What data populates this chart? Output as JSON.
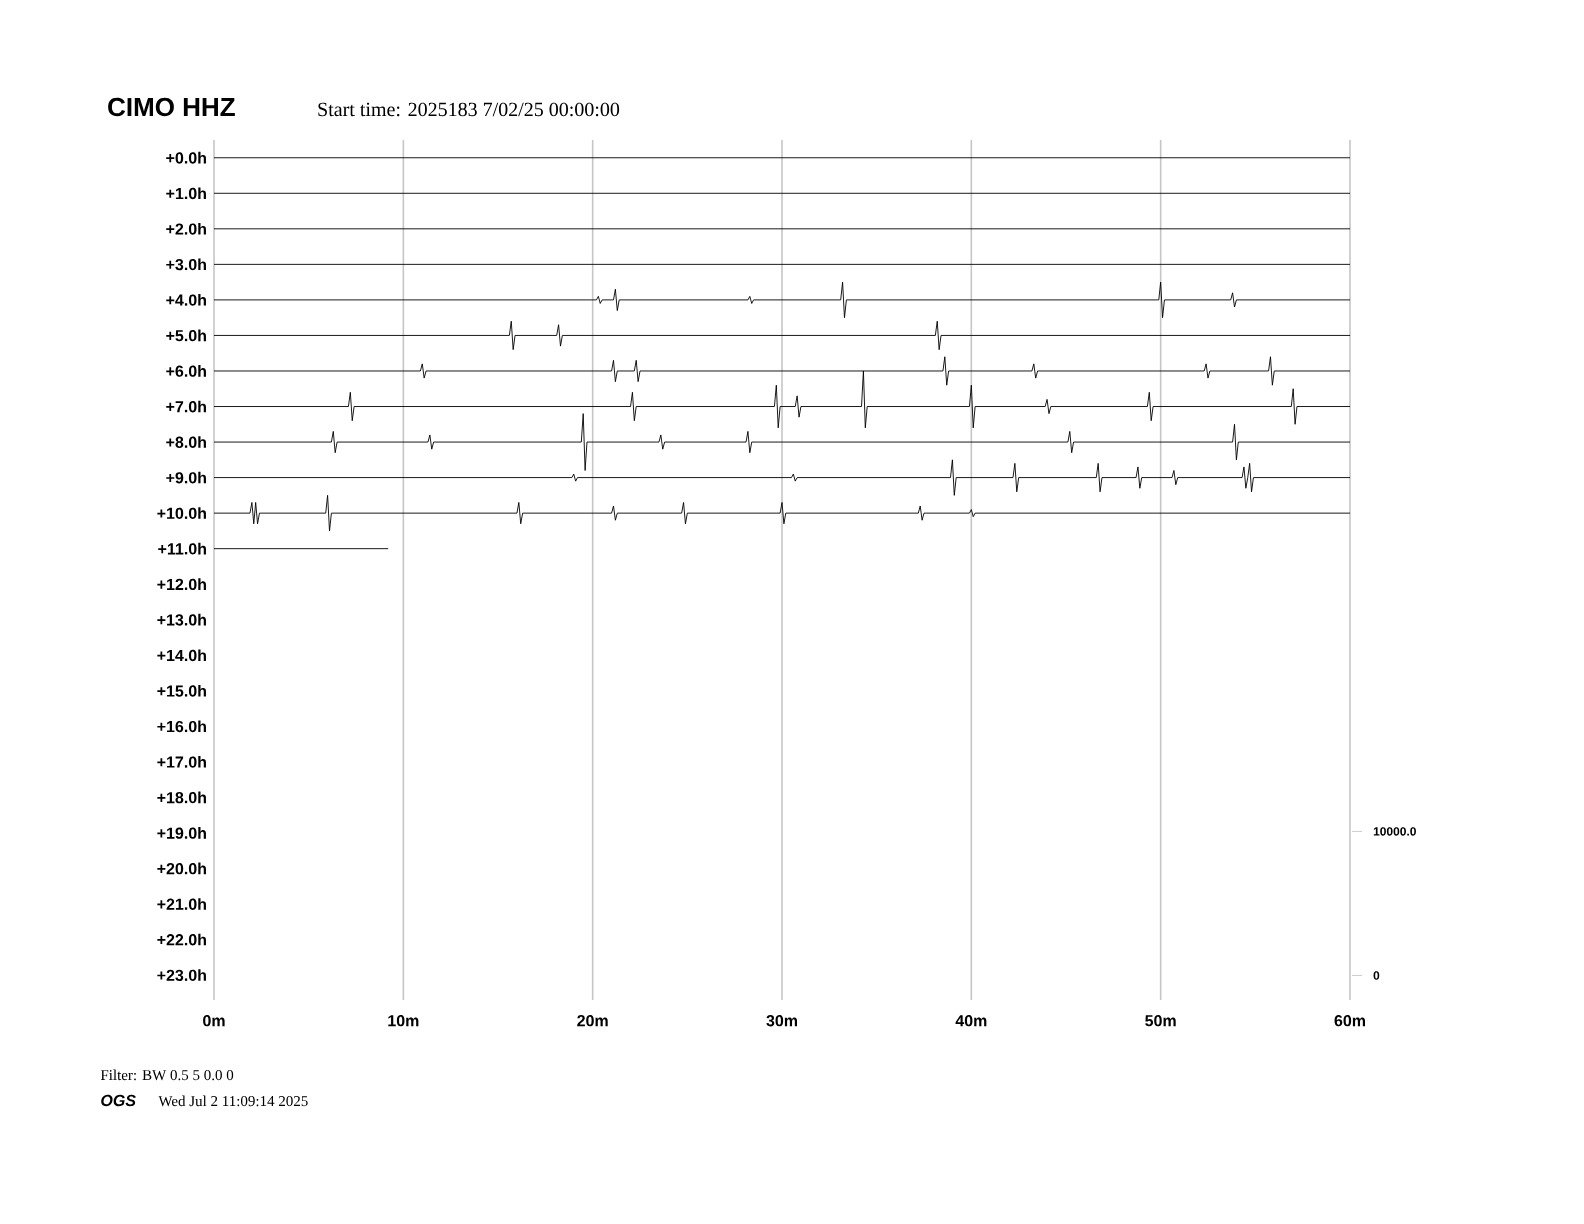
{
  "chart_data": {
    "type": "line",
    "title": "CIMO HHZ",
    "subtitle": "Start time: 2025183  7/02/25 00:00:00",
    "annotations": [
      "Filter: BW 0.5 5 0.0 0",
      "OGS",
      "Wed Jul  2 11:09:14 2025"
    ],
    "xlim": [
      0,
      60
    ],
    "ylim": [
      23.7,
      -0.5
    ],
    "y2lim": [
      -1700,
      58000
    ],
    "xticks": [
      {
        "value": 0,
        "label": "0m"
      },
      {
        "value": 10,
        "label": "10m"
      },
      {
        "value": 20,
        "label": "20m"
      },
      {
        "value": 30,
        "label": "30m"
      },
      {
        "value": 40,
        "label": "40m"
      },
      {
        "value": 50,
        "label": "50m"
      },
      {
        "value": 60,
        "label": "60m"
      }
    ],
    "yticks": [
      {
        "value": 0,
        "label": "+0.0h"
      },
      {
        "value": 1,
        "label": "+1.0h"
      },
      {
        "value": 2,
        "label": "+2.0h"
      },
      {
        "value": 3,
        "label": "+3.0h"
      },
      {
        "value": 4,
        "label": "+4.0h"
      },
      {
        "value": 5,
        "label": "+5.0h"
      },
      {
        "value": 6,
        "label": "+6.0h"
      },
      {
        "value": 7,
        "label": "+7.0h"
      },
      {
        "value": 8,
        "label": "+8.0h"
      },
      {
        "value": 9,
        "label": "+9.0h"
      },
      {
        "value": 10,
        "label": "+10.0h"
      },
      {
        "value": 11,
        "label": "+11.0h"
      },
      {
        "value": 12,
        "label": "+12.0h"
      },
      {
        "value": 13,
        "label": "+13.0h"
      },
      {
        "value": 14,
        "label": "+14.0h"
      },
      {
        "value": 15,
        "label": "+15.0h"
      },
      {
        "value": 16,
        "label": "+16.0h"
      },
      {
        "value": 17,
        "label": "+17.0h"
      },
      {
        "value": 18,
        "label": "+18.0h"
      },
      {
        "value": 19,
        "label": "+19.0h"
      },
      {
        "value": 20,
        "label": "+20.0h"
      },
      {
        "value": 21,
        "label": "+21.0h"
      },
      {
        "value": 22,
        "label": "+22.0h"
      },
      {
        "value": 23,
        "label": "+23.0h"
      }
    ],
    "y2ticks": [
      0,
      {
        "value": 10000,
        "label": "10000.0"
      }
    ],
    "grid": "x",
    "series": [
      {
        "color": "#000000",
        "x": [
          0,
          60
        ],
        "values": [
          0,
          0
        ]
      },
      {
        "color": "#000000",
        "x": [
          0,
          60
        ],
        "values": [
          1,
          1
        ]
      },
      {
        "color": "#000000",
        "x": [
          0,
          60
        ],
        "values": [
          2,
          2
        ]
      },
      {
        "color": "#000000",
        "x": [
          0,
          60
        ],
        "values": [
          3,
          3
        ]
      },
      {
        "color": "#000000",
        "x": [
          0,
          20.2,
          20.3,
          20.4,
          20.5,
          21.1,
          21.2,
          21.3,
          21.4,
          28.2,
          28.3,
          28.4,
          28.5,
          33.1,
          33.2,
          33.3,
          33.4,
          49.9,
          50.0,
          50.1,
          50.2,
          53.7,
          53.8,
          53.9,
          54.0,
          60
        ],
        "values": [
          4,
          4,
          3.9,
          4.1,
          4,
          4,
          3.7,
          4.3,
          4,
          4,
          3.9,
          4.1,
          4,
          4,
          3.5,
          4.5,
          4,
          4,
          3.5,
          4.5,
          4,
          4,
          3.8,
          4.2,
          4,
          4
        ]
      },
      {
        "color": "#000000",
        "x": [
          0,
          15.6,
          15.7,
          15.8,
          15.9,
          18.1,
          18.2,
          18.3,
          18.4,
          38.1,
          38.2,
          38.3,
          38.4,
          60
        ],
        "values": [
          5,
          5,
          4.6,
          5.4,
          5,
          5,
          4.7,
          5.3,
          5,
          5,
          4.6,
          5.4,
          5,
          5
        ]
      },
      {
        "color": "#000000",
        "x": [
          0,
          10.9,
          11.0,
          11.1,
          11.2,
          21.0,
          21.1,
          21.2,
          21.3,
          22.2,
          22.3,
          22.4,
          22.5,
          38.5,
          38.6,
          38.7,
          38.8,
          43.2,
          43.3,
          43.4,
          43.5,
          52.3,
          52.4,
          52.5,
          52.6,
          55.7,
          55.8,
          55.9,
          56.0,
          60
        ],
        "values": [
          6,
          6,
          5.8,
          6.2,
          6,
          6,
          5.7,
          6.3,
          6,
          6,
          5.7,
          6.3,
          6,
          6,
          5.6,
          6.4,
          6,
          6,
          5.8,
          6.2,
          6,
          6,
          5.8,
          6.2,
          6,
          6,
          5.6,
          6.4,
          6,
          6
        ]
      },
      {
        "color": "#000000",
        "x": [
          0,
          7.1,
          7.2,
          7.3,
          7.4,
          22.0,
          22.1,
          22.2,
          22.3,
          29.6,
          29.7,
          29.8,
          29.9,
          30.7,
          30.8,
          30.9,
          31.0,
          34.2,
          34.3,
          34.4,
          34.5,
          39.9,
          40.0,
          40.1,
          40.2,
          43.9,
          44.0,
          44.1,
          44.2,
          49.3,
          49.4,
          49.5,
          49.6,
          56.9,
          57.0,
          57.1,
          57.2,
          60
        ],
        "values": [
          7,
          7,
          6.6,
          7.4,
          7,
          7,
          6.6,
          7.4,
          7,
          7,
          6.4,
          7.6,
          7,
          7,
          6.7,
          7.3,
          7,
          7,
          6.0,
          7.6,
          7,
          7,
          6.4,
          7.6,
          7,
          7,
          6.8,
          7.2,
          7,
          7,
          6.6,
          7.4,
          7,
          7,
          6.5,
          7.5,
          7,
          7
        ]
      },
      {
        "color": "#000000",
        "x": [
          0,
          6.2,
          6.3,
          6.4,
          6.5,
          11.3,
          11.4,
          11.5,
          11.6,
          19.4,
          19.5,
          19.6,
          19.7,
          23.5,
          23.6,
          23.7,
          23.8,
          28.1,
          28.2,
          28.3,
          28.4,
          45.1,
          45.2,
          45.3,
          45.4,
          53.8,
          53.9,
          54.0,
          54.1,
          60
        ],
        "values": [
          8,
          8,
          7.7,
          8.3,
          8,
          8,
          7.8,
          8.2,
          8,
          8,
          7.2,
          8.8,
          8,
          8,
          7.8,
          8.2,
          8,
          8,
          7.7,
          8.3,
          8,
          8,
          7.7,
          8.3,
          8,
          8,
          7.5,
          8.5,
          8,
          8
        ]
      },
      {
        "color": "#000000",
        "x": [
          0,
          18.9,
          19.0,
          19.1,
          19.2,
          30.5,
          30.6,
          30.7,
          30.8,
          38.9,
          39.0,
          39.1,
          39.2,
          42.2,
          42.3,
          42.4,
          42.5,
          46.6,
          46.7,
          46.8,
          46.9,
          48.7,
          48.8,
          48.9,
          49.0,
          50.6,
          50.7,
          50.8,
          50.9,
          54.3,
          54.4,
          54.5,
          54.6,
          54.7,
          54.8,
          54.9,
          60
        ],
        "values": [
          9,
          9,
          8.9,
          9.1,
          9,
          9,
          8.9,
          9.1,
          9,
          9,
          8.5,
          9.5,
          9,
          9,
          8.6,
          9.4,
          9,
          9,
          8.6,
          9.4,
          9,
          9,
          8.7,
          9.3,
          9,
          9,
          8.8,
          9.2,
          9,
          9,
          8.7,
          9.3,
          9,
          8.6,
          9.4,
          9,
          9
        ]
      },
      {
        "color": "#000000",
        "x": [
          0,
          1.9,
          2.0,
          2.1,
          2.2,
          2.3,
          2.4,
          5.9,
          6.0,
          6.1,
          6.2,
          16.0,
          16.1,
          16.2,
          16.3,
          21.0,
          21.1,
          21.2,
          21.3,
          24.7,
          24.8,
          24.9,
          25.0,
          29.9,
          30.0,
          30.1,
          30.2,
          37.2,
          37.3,
          37.4,
          37.5,
          39.9,
          40.0,
          40.1,
          40.2,
          60
        ],
        "values": [
          10,
          10,
          9.7,
          10.3,
          9.7,
          10.3,
          10,
          10,
          9.5,
          10.5,
          10,
          10,
          9.7,
          10.3,
          10,
          10,
          9.8,
          10.2,
          10,
          10,
          9.7,
          10.3,
          10,
          10,
          9.7,
          10.3,
          10,
          10,
          9.8,
          10.2,
          10,
          10,
          9.9,
          10.1,
          10,
          10
        ]
      },
      {
        "color": "#000000",
        "x": [
          0,
          9.2
        ],
        "values": [
          11,
          11
        ]
      }
    ]
  }
}
